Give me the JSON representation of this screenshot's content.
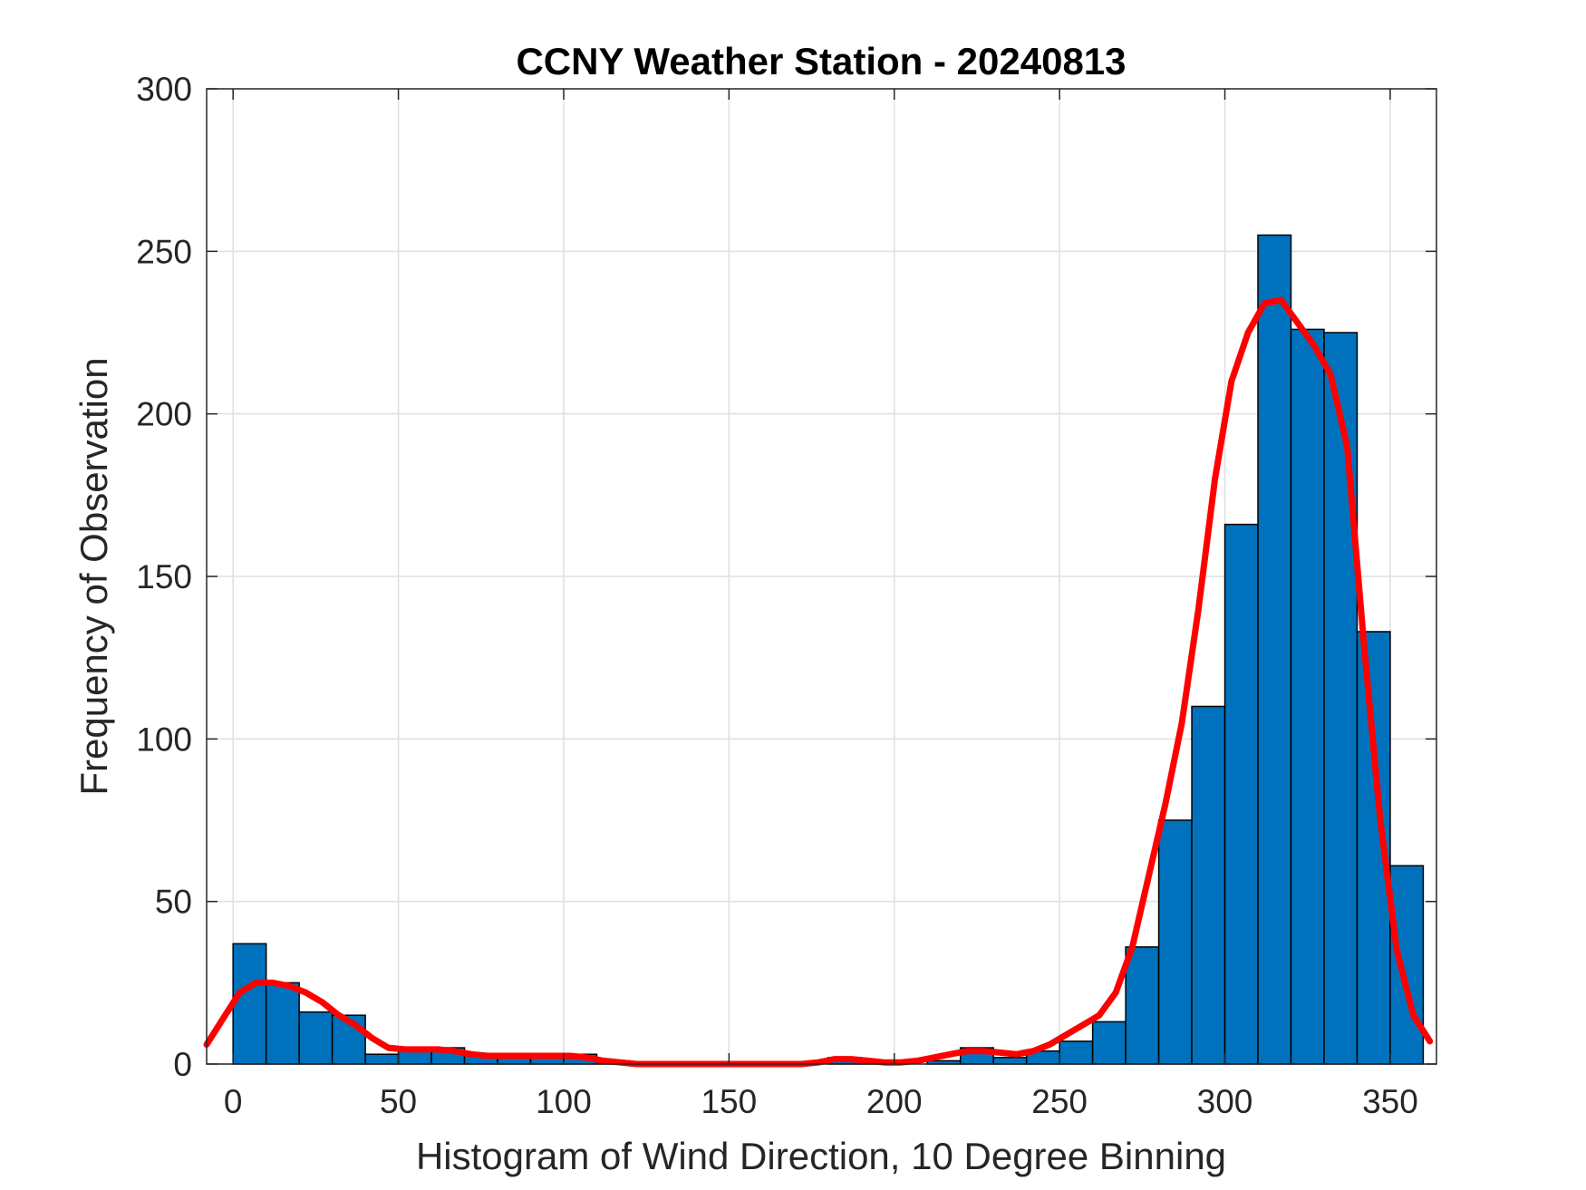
{
  "chart_data": {
    "type": "bar",
    "title": "CCNY Weather Station - 20240813",
    "xlabel": "Histogram of Wind Direction, 10 Degree Binning",
    "ylabel": "Frequency of Observation",
    "xlim": [
      -8,
      364
    ],
    "ylim": [
      0,
      300
    ],
    "xticks": [
      0,
      50,
      100,
      150,
      200,
      250,
      300,
      350
    ],
    "yticks": [
      0,
      50,
      100,
      150,
      200,
      250,
      300
    ],
    "grid": true,
    "bin_width": 10,
    "bins": [
      {
        "start": 0,
        "value": 37
      },
      {
        "start": 10,
        "value": 25
      },
      {
        "start": 20,
        "value": 16
      },
      {
        "start": 30,
        "value": 15
      },
      {
        "start": 40,
        "value": 3
      },
      {
        "start": 50,
        "value": 5
      },
      {
        "start": 60,
        "value": 5
      },
      {
        "start": 70,
        "value": 3
      },
      {
        "start": 80,
        "value": 3
      },
      {
        "start": 90,
        "value": 3
      },
      {
        "start": 100,
        "value": 3
      },
      {
        "start": 110,
        "value": 1
      },
      {
        "start": 120,
        "value": 0
      },
      {
        "start": 130,
        "value": 0
      },
      {
        "start": 140,
        "value": 0
      },
      {
        "start": 150,
        "value": 0
      },
      {
        "start": 160,
        "value": 0
      },
      {
        "start": 170,
        "value": 0
      },
      {
        "start": 180,
        "value": 2
      },
      {
        "start": 190,
        "value": 1
      },
      {
        "start": 200,
        "value": 0
      },
      {
        "start": 210,
        "value": 1
      },
      {
        "start": 220,
        "value": 5
      },
      {
        "start": 230,
        "value": 2
      },
      {
        "start": 240,
        "value": 4
      },
      {
        "start": 250,
        "value": 7
      },
      {
        "start": 260,
        "value": 13
      },
      {
        "start": 270,
        "value": 36
      },
      {
        "start": 280,
        "value": 75
      },
      {
        "start": 290,
        "value": 110
      },
      {
        "start": 300,
        "value": 166
      },
      {
        "start": 310,
        "value": 255
      },
      {
        "start": 320,
        "value": 226
      },
      {
        "start": 330,
        "value": 225
      },
      {
        "start": 340,
        "value": 133
      },
      {
        "start": 350,
        "value": 61
      }
    ],
    "curve": {
      "x": [
        -8,
        -3,
        2,
        7,
        12,
        17,
        22,
        27,
        32,
        37,
        42,
        47,
        52,
        57,
        62,
        67,
        72,
        77,
        82,
        87,
        92,
        97,
        102,
        107,
        112,
        117,
        122,
        127,
        132,
        137,
        142,
        147,
        152,
        157,
        162,
        167,
        172,
        177,
        182,
        187,
        192,
        197,
        202,
        207,
        212,
        217,
        222,
        227,
        232,
        237,
        242,
        247,
        252,
        257,
        262,
        267,
        272,
        277,
        282,
        287,
        292,
        297,
        302,
        307,
        312,
        317,
        322,
        327,
        332,
        337,
        342,
        347,
        352,
        357,
        362
      ],
      "y": [
        6,
        14,
        22,
        25,
        25,
        24,
        22,
        19,
        15,
        12,
        8,
        5,
        4.5,
        4.5,
        4.5,
        4,
        3,
        2.5,
        2.5,
        2.5,
        2.5,
        2.5,
        2.5,
        2,
        1,
        0.5,
        0,
        0,
        0,
        0,
        0,
        0,
        0,
        0,
        0,
        0,
        0,
        0.5,
        1.5,
        1.5,
        1,
        0.5,
        0.5,
        1,
        2,
        3,
        4,
        4,
        3.5,
        3,
        4,
        6,
        9,
        12,
        15,
        22,
        36,
        58,
        80,
        105,
        140,
        180,
        210,
        225,
        234,
        235,
        228,
        221,
        212,
        190,
        130,
        75,
        35,
        15,
        7
      ]
    },
    "colors": {
      "bar_fill": "#0072BD",
      "bar_edge": "#000000",
      "curve": "#FF0000",
      "grid": "#DFDFDF",
      "axis": "#262626"
    }
  }
}
